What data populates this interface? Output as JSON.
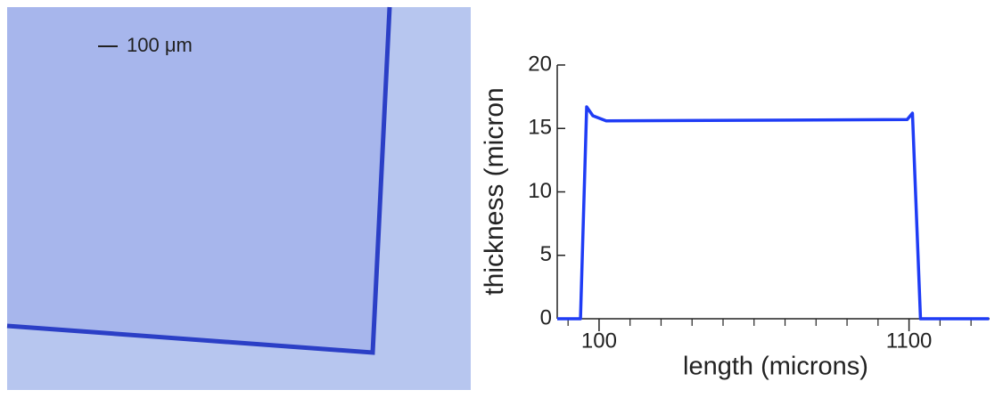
{
  "micrograph": {
    "scale_bar": "100 μm"
  },
  "chart_data": {
    "type": "line",
    "x_label": "length (microns)",
    "y_label": "thickness (micron",
    "x": [
      -35,
      40,
      60,
      80,
      123,
      1094,
      1111,
      1137,
      1358
    ],
    "series": [
      {
        "color": "#1f3cf5",
        "values": [
          0,
          0,
          16.7,
          16.0,
          15.6,
          15.7,
          16.2,
          0,
          0
        ]
      }
    ],
    "xlim": [
      -35,
      1360
    ],
    "xticks": [
      100,
      1100
    ],
    "xminor": [
      0,
      200,
      300,
      400,
      500,
      600,
      700,
      800,
      900,
      1000,
      1200,
      1300
    ],
    "ylim": [
      0,
      20
    ],
    "yticks": [
      0,
      5,
      10,
      15,
      20
    ]
  }
}
